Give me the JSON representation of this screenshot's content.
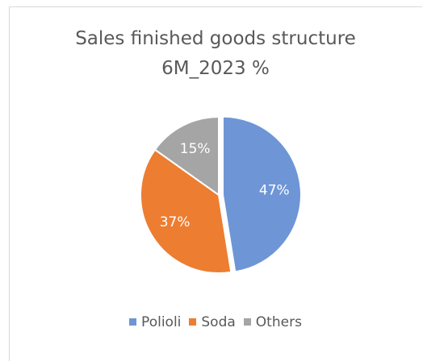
{
  "chart_data": {
    "type": "pie",
    "title": "Sales finished goods structure",
    "subtitle": "6M_2023 %",
    "categories": [
      "Polioli",
      "Soda",
      "Others"
    ],
    "values": [
      47,
      37,
      15
    ],
    "labels": [
      "47%",
      "37%",
      "15%"
    ],
    "colors": [
      "#6e96d6",
      "#ed7d31",
      "#a5a5a5"
    ],
    "legend_position": "bottom",
    "exploded_slice": "Polioli"
  }
}
